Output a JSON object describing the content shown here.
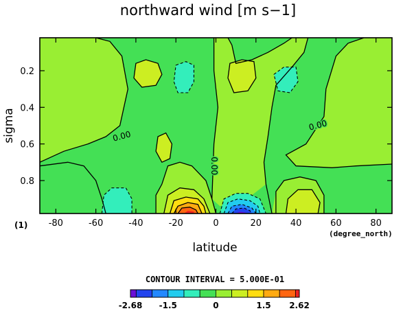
{
  "chart_data": {
    "type": "contour",
    "title": "northward wind [m s−1]",
    "xlabel": "latitude",
    "ylabel": "sigma",
    "x_units": "(degree_north)",
    "y_note": "(1)",
    "xlim": [
      -88,
      88
    ],
    "ylim": [
      0.98,
      0.02
    ],
    "x_ticks": [
      -80,
      -60,
      -40,
      -20,
      0,
      20,
      40,
      60,
      80
    ],
    "y_ticks": [
      0.2,
      0.4,
      0.6,
      0.8
    ],
    "contour_interval_text": "CONTOUR INTERVAL = 5.000E-01",
    "contour_labels": [
      {
        "text": "0.00",
        "lat": -47,
        "sigma": 0.56
      },
      {
        "text": "0.00",
        "lat": -1,
        "sigma": 0.72
      },
      {
        "text": "0.00",
        "lat": 51,
        "sigma": 0.5
      }
    ],
    "features": [
      {
        "kind": "max",
        "lat": -12,
        "sigma": 0.97,
        "value": 2.62
      },
      {
        "kind": "min",
        "lat": 12,
        "sigma": 0.97,
        "value": -2.68
      },
      {
        "kind": "positive",
        "lat": -33,
        "sigma": 0.2,
        "value": 0.55
      },
      {
        "kind": "negative",
        "lat": -15,
        "sigma": 0.22,
        "value": -0.6
      },
      {
        "kind": "positive",
        "lat": 12,
        "sigma": 0.22,
        "value": 0.6
      },
      {
        "kind": "negative",
        "lat": 35,
        "sigma": 0.22,
        "value": -0.55
      },
      {
        "kind": "negative",
        "lat": -48,
        "sigma": 0.87,
        "value": -0.6
      },
      {
        "kind": "positive",
        "lat": 42,
        "sigma": 0.87,
        "value": 0.6
      },
      {
        "kind": "positive",
        "lat": -25,
        "sigma": 0.62,
        "value": 0.2
      }
    ],
    "colorbar": {
      "levels": [
        -2.68,
        -2.5,
        -2,
        -1.5,
        -1,
        -0.5,
        0,
        0.5,
        1,
        1.5,
        2,
        2.5,
        2.62
      ],
      "tick_labels": [
        "-2.68",
        "-1.5",
        "0",
        "1.5",
        "2.62"
      ],
      "tick_values": [
        -2.68,
        -1.5,
        0,
        1.5,
        2.62
      ],
      "colors": [
        "#6a0fd6",
        "#2244ee",
        "#2288ff",
        "#22ccee",
        "#33eebb",
        "#44e055",
        "#99ee33",
        "#ccee22",
        "#ffdd11",
        "#ffaa11",
        "#ff6611",
        "#ee2222"
      ]
    }
  }
}
